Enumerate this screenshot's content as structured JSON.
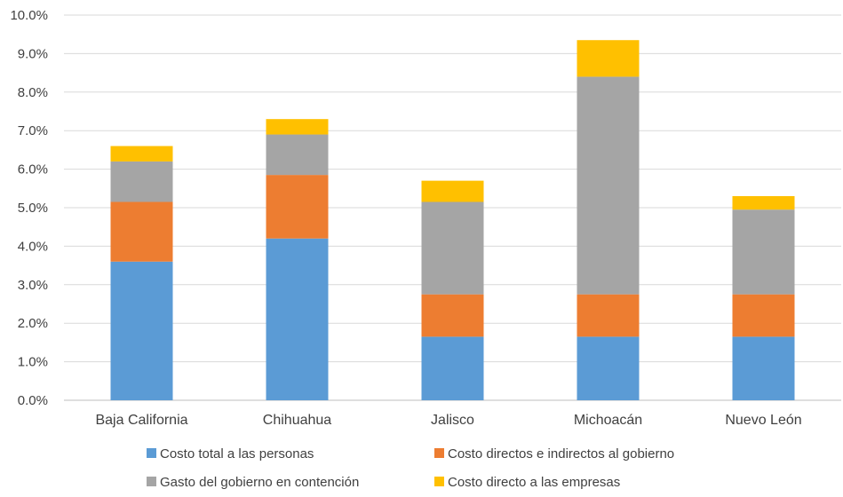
{
  "chart_data": {
    "type": "bar",
    "stacked": true,
    "title": "",
    "xlabel": "",
    "ylabel": "",
    "ylim": [
      0,
      10
    ],
    "y_tick_labels": [
      "0.0%",
      "1.0%",
      "2.0%",
      "3.0%",
      "4.0%",
      "5.0%",
      "6.0%",
      "7.0%",
      "8.0%",
      "9.0%",
      "10.0%"
    ],
    "grid": "horizontal",
    "legend_placement": "bottom",
    "categories": [
      "Baja California",
      "Chihuahua",
      "Jalisco",
      "Michoacán",
      "Nuevo León"
    ],
    "series": [
      {
        "name": "Costo total a las personas",
        "color": "#5B9BD5",
        "values": [
          3.6,
          4.2,
          1.65,
          1.65,
          1.65
        ]
      },
      {
        "name": "Costo directos e indirectos al gobierno",
        "color": "#ED7D31",
        "values": [
          1.55,
          1.65,
          1.1,
          1.1,
          1.1
        ]
      },
      {
        "name": "Gasto del gobierno en contención",
        "color": "#A5A5A5",
        "values": [
          1.05,
          1.05,
          2.4,
          5.65,
          2.2
        ]
      },
      {
        "name": "Costo directo a las empresas",
        "color": "#FFC000",
        "values": [
          0.4,
          0.4,
          0.55,
          0.95,
          0.35
        ]
      }
    ]
  }
}
